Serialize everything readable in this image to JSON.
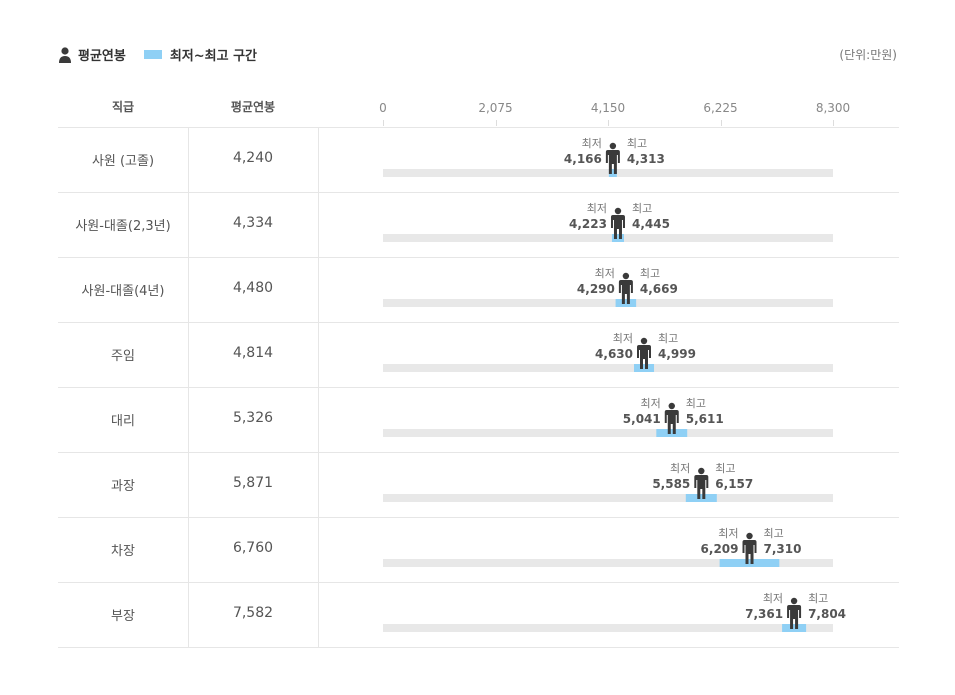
{
  "legend": {
    "avg_label": "평균연봉",
    "range_label": "최저~최고 구간",
    "unit": "(단위:만원)"
  },
  "table_headers": {
    "rank": "직급",
    "avg": "평균연봉"
  },
  "labels": {
    "min": "최저",
    "max": "최고"
  },
  "colors": {
    "track": "#e8e8e8",
    "range": "#8fd0f5",
    "person": "#3a3a3a"
  },
  "chart_data": {
    "type": "bar",
    "xlim": [
      0,
      8300
    ],
    "ticks": [
      "0",
      "2,075",
      "4,150",
      "6,225",
      "8,300"
    ],
    "tick_values": [
      0,
      2075,
      4150,
      6225,
      8300
    ],
    "rows": [
      {
        "rank": "사원 (고졸)",
        "avg": 4240,
        "avg_text": "4,240",
        "min": 4166,
        "min_text": "4,166",
        "max": 4313,
        "max_text": "4,313"
      },
      {
        "rank": "사원-대졸(2,3년)",
        "avg": 4334,
        "avg_text": "4,334",
        "min": 4223,
        "min_text": "4,223",
        "max": 4445,
        "max_text": "4,445"
      },
      {
        "rank": "사원-대졸(4년)",
        "avg": 4480,
        "avg_text": "4,480",
        "min": 4290,
        "min_text": "4,290",
        "max": 4669,
        "max_text": "4,669"
      },
      {
        "rank": "주임",
        "avg": 4814,
        "avg_text": "4,814",
        "min": 4630,
        "min_text": "4,630",
        "max": 4999,
        "max_text": "4,999"
      },
      {
        "rank": "대리",
        "avg": 5326,
        "avg_text": "5,326",
        "min": 5041,
        "min_text": "5,041",
        "max": 5611,
        "max_text": "5,611"
      },
      {
        "rank": "과장",
        "avg": 5871,
        "avg_text": "5,871",
        "min": 5585,
        "min_text": "5,585",
        "max": 6157,
        "max_text": "6,157"
      },
      {
        "rank": "차장",
        "avg": 6760,
        "avg_text": "6,760",
        "min": 6209,
        "min_text": "6,209",
        "max": 7310,
        "max_text": "7,310"
      },
      {
        "rank": "부장",
        "avg": 7582,
        "avg_text": "7,582",
        "min": 7361,
        "min_text": "7,361",
        "max": 7804,
        "max_text": "7,804"
      }
    ]
  }
}
